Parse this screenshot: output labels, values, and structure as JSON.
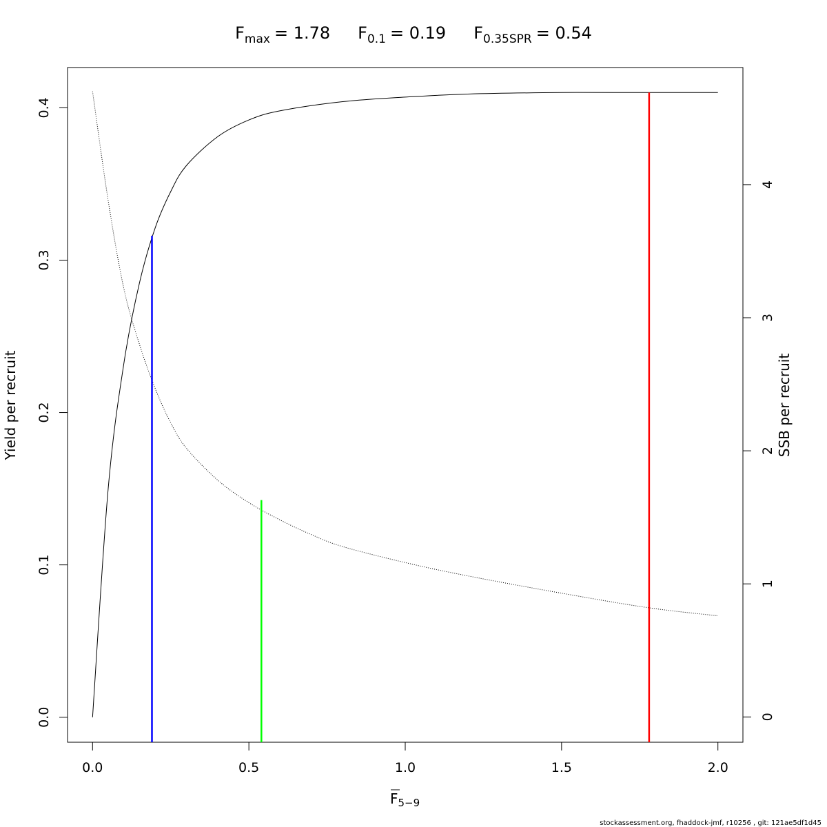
{
  "chart_data": {
    "type": "line",
    "title": {
      "parts": [
        {
          "base": "F",
          "sub": "max",
          "eq": "= 1.78"
        },
        {
          "base": "F",
          "sub": "0.1",
          "eq": "= 0.19"
        },
        {
          "base": "F",
          "sub": "0.35SPR",
          "eq": "= 0.54"
        }
      ]
    },
    "xlabel": {
      "base": "F",
      "sub": "5−9"
    },
    "ylabel_left": "Yield per recruit",
    "ylabel_right": "SSB per recruit",
    "xlim": [
      -0.08,
      2.08
    ],
    "ylim_left": [
      -0.0164,
      0.4264
    ],
    "ylim_right": [
      -0.19,
      4.88
    ],
    "x_ticks": [
      0.0,
      0.5,
      1.0,
      1.5,
      2.0
    ],
    "x_tick_labels": [
      "0.0",
      "0.5",
      "1.0",
      "1.5",
      "2.0"
    ],
    "y_left_ticks": [
      0.0,
      0.1,
      0.2,
      0.3,
      0.4
    ],
    "y_left_tick_labels": [
      "0.0",
      "0.1",
      "0.2",
      "0.3",
      "0.4"
    ],
    "y_right_ticks": [
      0,
      1,
      2,
      3,
      4
    ],
    "y_right_tick_labels": [
      "0",
      "1",
      "2",
      "3",
      "4"
    ],
    "series": [
      {
        "axis": "left",
        "style": "solid",
        "color": "#000000",
        "x": [
          0.0,
          0.05,
          0.1,
          0.15,
          0.2,
          0.25,
          0.3,
          0.4,
          0.5,
          0.6,
          0.8,
          1.0,
          1.2,
          1.5,
          1.78,
          2.0
        ],
        "y": [
          0.0,
          0.15,
          0.232,
          0.285,
          0.321,
          0.345,
          0.362,
          0.381,
          0.392,
          0.398,
          0.404,
          0.407,
          0.409,
          0.41,
          0.41,
          0.41
        ]
      },
      {
        "axis": "right",
        "style": "dotted",
        "color": "#000000",
        "x": [
          0.0,
          0.05,
          0.1,
          0.15,
          0.2,
          0.25,
          0.3,
          0.4,
          0.5,
          0.6,
          0.7,
          0.8,
          1.0,
          1.2,
          1.5,
          1.78,
          2.0
        ],
        "y": [
          4.7,
          3.88,
          3.22,
          2.8,
          2.47,
          2.21,
          2.02,
          1.78,
          1.61,
          1.48,
          1.37,
          1.28,
          1.16,
          1.06,
          0.93,
          0.82,
          0.76
        ]
      }
    ],
    "reference_lines": [
      {
        "name": "F0.1",
        "x": 0.19,
        "y_top": 0.316,
        "axis": "left",
        "color": "#0000ff"
      },
      {
        "name": "F0.35SPR",
        "x": 0.54,
        "y_top": 1.63,
        "axis": "right",
        "color": "#00ff00"
      },
      {
        "name": "Fmax",
        "x": 1.78,
        "y_top": 0.41,
        "axis": "left",
        "color": "#ff0000"
      }
    ],
    "grid": false,
    "legend": "none"
  },
  "footer": "stockassessment.org, fhaddock-jmf, r10256 , git: 121ae5df1d45"
}
